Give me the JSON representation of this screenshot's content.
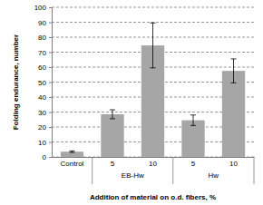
{
  "chart_data": {
    "type": "bar",
    "y_label": "Folding endurance, number",
    "x_label": "Addition of material on o.d. fibers, %",
    "categories": [
      "Control",
      "5",
      "10",
      "5",
      "10"
    ],
    "groups": [
      null,
      "EB-Hw",
      "EB-Hw",
      "Hw",
      "Hw"
    ],
    "values": [
      3.5,
      28.5,
      74.5,
      24.5,
      57.5
    ],
    "errors": [
      0.5,
      3,
      15,
      3.5,
      8
    ],
    "color": "#a6a6a6",
    "ylim": [
      0,
      100
    ],
    "yticks": [
      0,
      10,
      20,
      30,
      40,
      50,
      60,
      70,
      80,
      90,
      100
    ],
    "grid": true
  }
}
